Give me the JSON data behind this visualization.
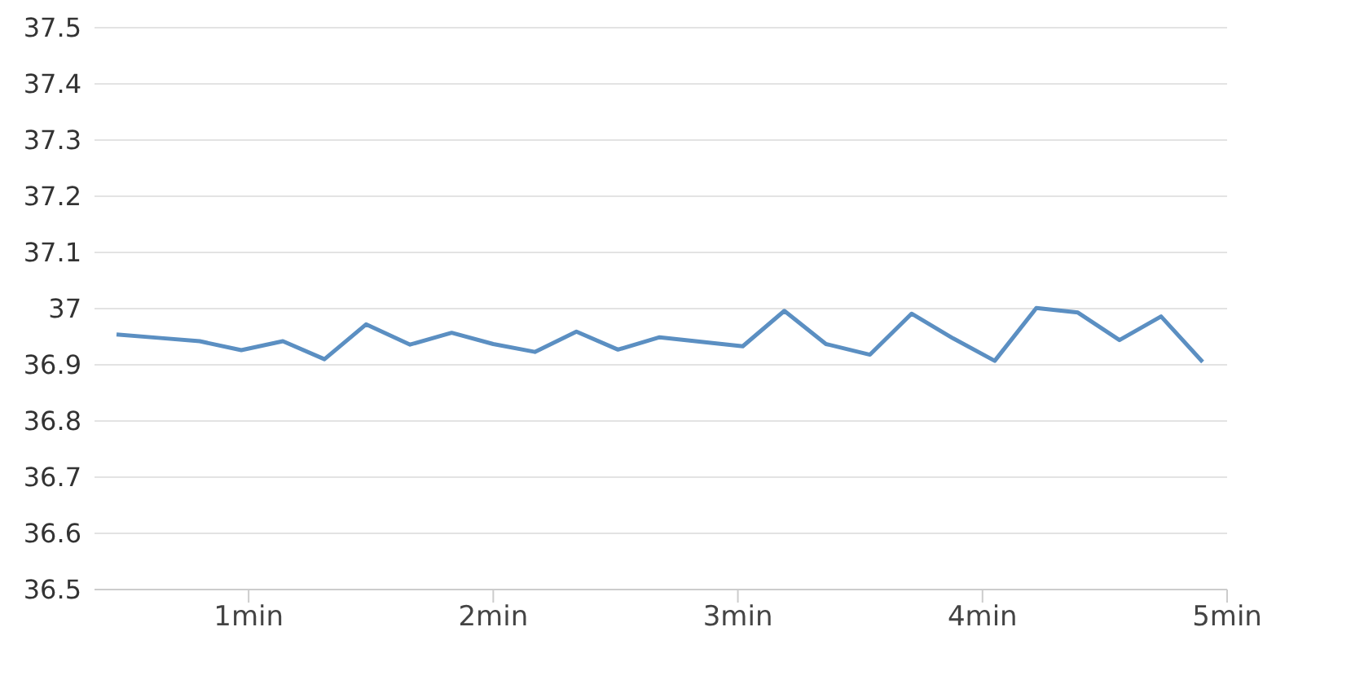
{
  "chart_data": {
    "type": "line",
    "x": [
      0.46,
      0.63,
      0.8,
      0.97,
      1.14,
      1.31,
      1.48,
      1.66,
      1.83,
      2.0,
      2.17,
      2.34,
      2.51,
      2.68,
      2.85,
      3.02,
      3.19,
      3.36,
      3.54,
      3.71,
      3.88,
      4.05,
      4.22,
      4.39,
      4.56,
      4.73,
      4.9
    ],
    "series": [
      {
        "color": "#5b8fc2",
        "values": [
          36.954,
          36.948,
          36.942,
          36.926,
          36.942,
          36.91,
          36.972,
          36.936,
          36.957,
          36.937,
          36.923,
          36.959,
          36.927,
          36.949,
          36.941,
          36.933,
          36.996,
          36.937,
          36.918,
          36.991,
          36.947,
          36.907,
          37.001,
          36.993,
          36.944,
          36.986,
          36.905
        ]
      }
    ],
    "xlim": [
      0.37,
      5
    ],
    "xticks": [
      {
        "value": 1,
        "label": "1min"
      },
      {
        "value": 2,
        "label": "2min"
      },
      {
        "value": 3,
        "label": "3min"
      },
      {
        "value": 4,
        "label": "4min"
      },
      {
        "value": 5,
        "label": "5min"
      }
    ],
    "ylim": [
      36.5,
      37.5
    ],
    "yticks": [
      36.5,
      36.6,
      36.7,
      36.8,
      36.9,
      37,
      37.1,
      37.2,
      37.3,
      37.4,
      37.5
    ],
    "grid": "y",
    "marker": "none",
    "line_style": "solid",
    "legend": false
  }
}
